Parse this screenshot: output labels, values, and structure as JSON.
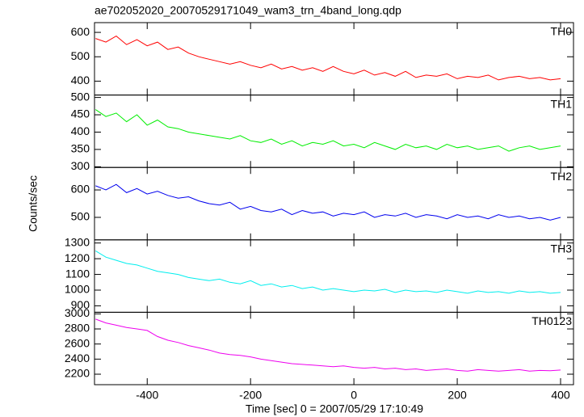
{
  "chart_data": {
    "type": "line",
    "title": "ae702052020_20070529171049_wam3_trn_4band_long.qdp",
    "xlabel": "Time [sec] 0 = 2007/05/29 17:10:49",
    "ylabel": "Counts/sec",
    "xlim": [
      -502,
      425
    ],
    "xticks": [
      -400,
      -200,
      0,
      200,
      400
    ],
    "x": [
      -500,
      -480,
      -460,
      -440,
      -420,
      -400,
      -380,
      -360,
      -340,
      -320,
      -300,
      -280,
      -260,
      -240,
      -220,
      -200,
      -180,
      -160,
      -140,
      -120,
      -100,
      -80,
      -60,
      -40,
      -20,
      0,
      20,
      40,
      60,
      80,
      100,
      120,
      140,
      160,
      180,
      200,
      220,
      240,
      260,
      280,
      300,
      320,
      340,
      360,
      380,
      400
    ],
    "series": [
      {
        "name": "TH0",
        "color": "#ff0000",
        "ylim": [
          343,
          640
        ],
        "yticks": [
          400,
          500,
          600
        ],
        "values": [
          575,
          560,
          585,
          550,
          570,
          545,
          560,
          530,
          540,
          515,
          500,
          490,
          480,
          470,
          480,
          465,
          455,
          470,
          450,
          460,
          445,
          455,
          440,
          460,
          440,
          430,
          445,
          425,
          435,
          420,
          440,
          415,
          425,
          420,
          430,
          410,
          420,
          415,
          425,
          405,
          415,
          420,
          410,
          415,
          405,
          410
        ]
      },
      {
        "name": "TH1",
        "color": "#00ee00",
        "ylim": [
          298,
          507
        ],
        "yticks": [
          300,
          350,
          400,
          450,
          500
        ],
        "values": [
          465,
          445,
          455,
          430,
          450,
          420,
          435,
          415,
          410,
          400,
          395,
          390,
          385,
          380,
          390,
          375,
          370,
          380,
          365,
          375,
          360,
          370,
          365,
          375,
          360,
          365,
          355,
          370,
          360,
          350,
          365,
          355,
          360,
          350,
          365,
          355,
          360,
          350,
          355,
          360,
          345,
          355,
          360,
          350,
          355,
          360
        ]
      },
      {
        "name": "TH2",
        "color": "#0000ee",
        "ylim": [
          418,
          682
        ],
        "yticks": [
          500,
          600
        ],
        "values": [
          615,
          600,
          620,
          590,
          605,
          585,
          595,
          580,
          570,
          575,
          560,
          550,
          545,
          555,
          530,
          540,
          525,
          520,
          530,
          510,
          525,
          515,
          520,
          505,
          515,
          510,
          520,
          500,
          510,
          505,
          515,
          500,
          510,
          505,
          495,
          510,
          500,
          505,
          495,
          510,
          500,
          505,
          495,
          500,
          490,
          500
        ]
      },
      {
        "name": "TH3",
        "color": "#00eeee",
        "ylim": [
          859,
          1320
        ],
        "yticks": [
          900,
          1000,
          1100,
          1200,
          1300
        ],
        "values": [
          1250,
          1210,
          1190,
          1170,
          1160,
          1140,
          1120,
          1110,
          1100,
          1080,
          1070,
          1060,
          1070,
          1050,
          1040,
          1060,
          1030,
          1040,
          1020,
          1030,
          1010,
          1020,
          1000,
          1010,
          1000,
          990,
          1000,
          995,
          1005,
          985,
          1000,
          990,
          995,
          985,
          1000,
          990,
          980,
          995,
          985,
          990,
          980,
          995,
          985,
          990,
          980,
          985
        ]
      },
      {
        "name": "TH0123",
        "color": "#ee00ee",
        "ylim": [
          2061,
          3021
        ],
        "yticks": [
          2200,
          2400,
          2600,
          2800,
          3000
        ],
        "values": [
          2930,
          2880,
          2850,
          2820,
          2800,
          2780,
          2700,
          2650,
          2620,
          2580,
          2550,
          2520,
          2480,
          2460,
          2450,
          2430,
          2400,
          2380,
          2360,
          2340,
          2330,
          2320,
          2310,
          2300,
          2310,
          2290,
          2280,
          2290,
          2270,
          2280,
          2260,
          2270,
          2250,
          2260,
          2270,
          2250,
          2240,
          2260,
          2250,
          2240,
          2250,
          2260,
          2240,
          2250,
          2245,
          2255
        ]
      }
    ]
  }
}
